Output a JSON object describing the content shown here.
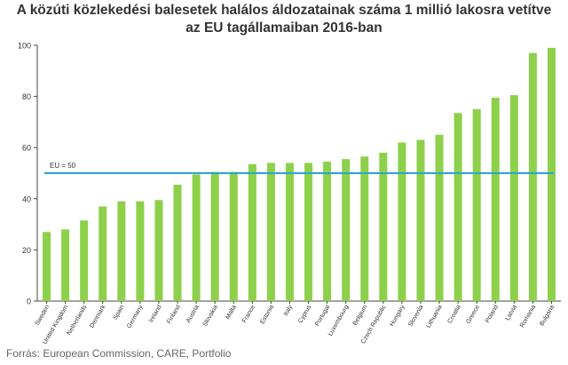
{
  "chart_data": {
    "type": "bar",
    "title_line1": "A közúti közlekedési balesetek halálos áldozatainak száma 1 millió lakosra vetítve",
    "title_line2": "az EU tagállamaiban 2016-ban",
    "categories": [
      "Sweden",
      "United Kingdom",
      "Netherlands",
      "Denmark",
      "Spain",
      "Germany",
      "Ireland",
      "Finland",
      "Austria",
      "Slovakia",
      "Malta",
      "France",
      "Estonia",
      "Italy",
      "Cyprus",
      "Portugal",
      "Luxembourg",
      "Belgium",
      "Czech Republic",
      "Hungary",
      "Slovenia",
      "Lithuania",
      "Croatia",
      "Greece",
      "Poland",
      "Latvia",
      "Romania",
      "Bulgaria"
    ],
    "values": [
      27,
      28,
      31.5,
      37,
      39,
      39,
      39.5,
      45.5,
      49.5,
      50.5,
      50.5,
      53.5,
      54,
      54,
      54,
      54.5,
      55.5,
      56.5,
      58,
      62,
      63,
      65,
      73.5,
      75,
      79.5,
      80.5,
      97,
      99
    ],
    "ylim": [
      0,
      100
    ],
    "yticks": [
      0,
      20,
      40,
      60,
      80,
      100
    ],
    "reference_line": {
      "value": 50,
      "label": "EU = 50"
    },
    "grid": false,
    "bar_color": "#8dd04a",
    "reference_color": "#29a3dc"
  },
  "source": "Forrás: European Commission, CARE, Portfolio"
}
